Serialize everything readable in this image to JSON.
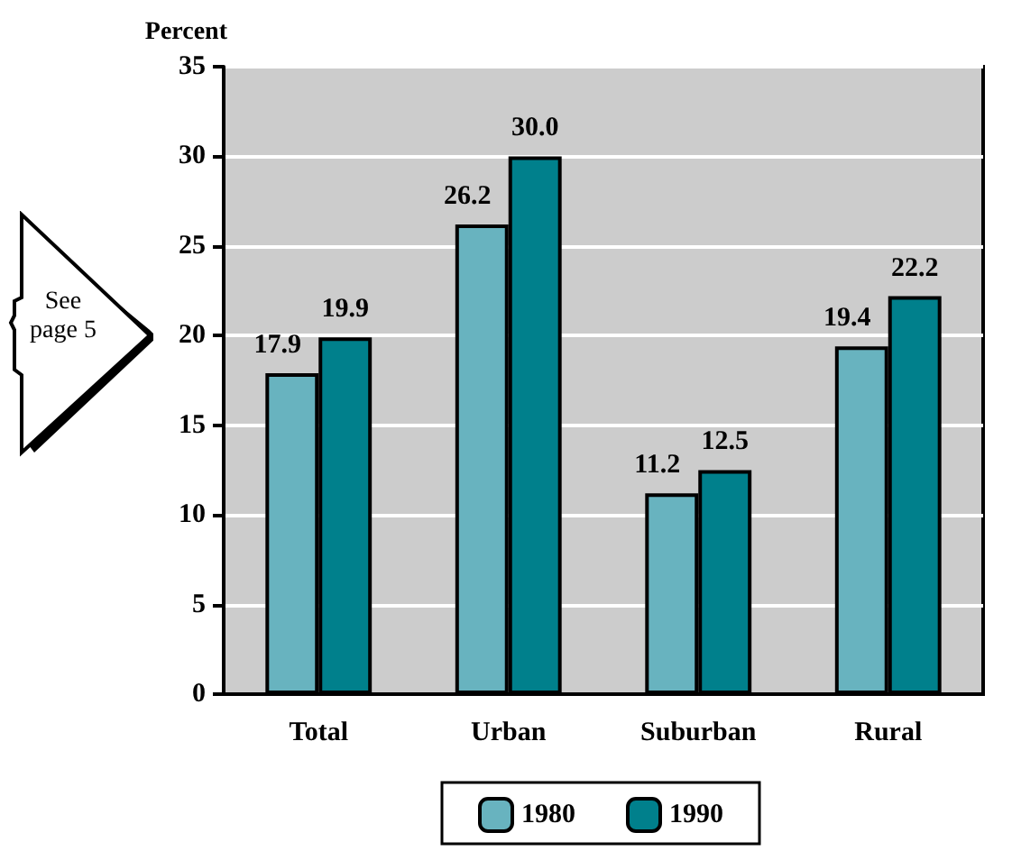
{
  "chart_data": {
    "type": "bar",
    "ylabel": "Percent",
    "categories": [
      "Total",
      "Urban",
      "Suburban",
      "Rural"
    ],
    "series": [
      {
        "name": "1980",
        "color": "#68b3bf",
        "values": [
          17.9,
          26.2,
          11.2,
          19.4
        ]
      },
      {
        "name": "1990",
        "color": "#00808c",
        "values": [
          19.9,
          30.0,
          12.5,
          22.2
        ]
      }
    ],
    "value_labels": [
      [
        "17.9",
        "26.2",
        "11.2",
        "19.4"
      ],
      [
        "19.9",
        "30.0",
        "12.5",
        "22.2"
      ]
    ],
    "ylim": [
      0,
      35
    ],
    "yticks": [
      0,
      5,
      10,
      15,
      20,
      25,
      30,
      35
    ],
    "grid": "y",
    "legend": "bottom",
    "annotations": [
      "See page 5"
    ]
  }
}
